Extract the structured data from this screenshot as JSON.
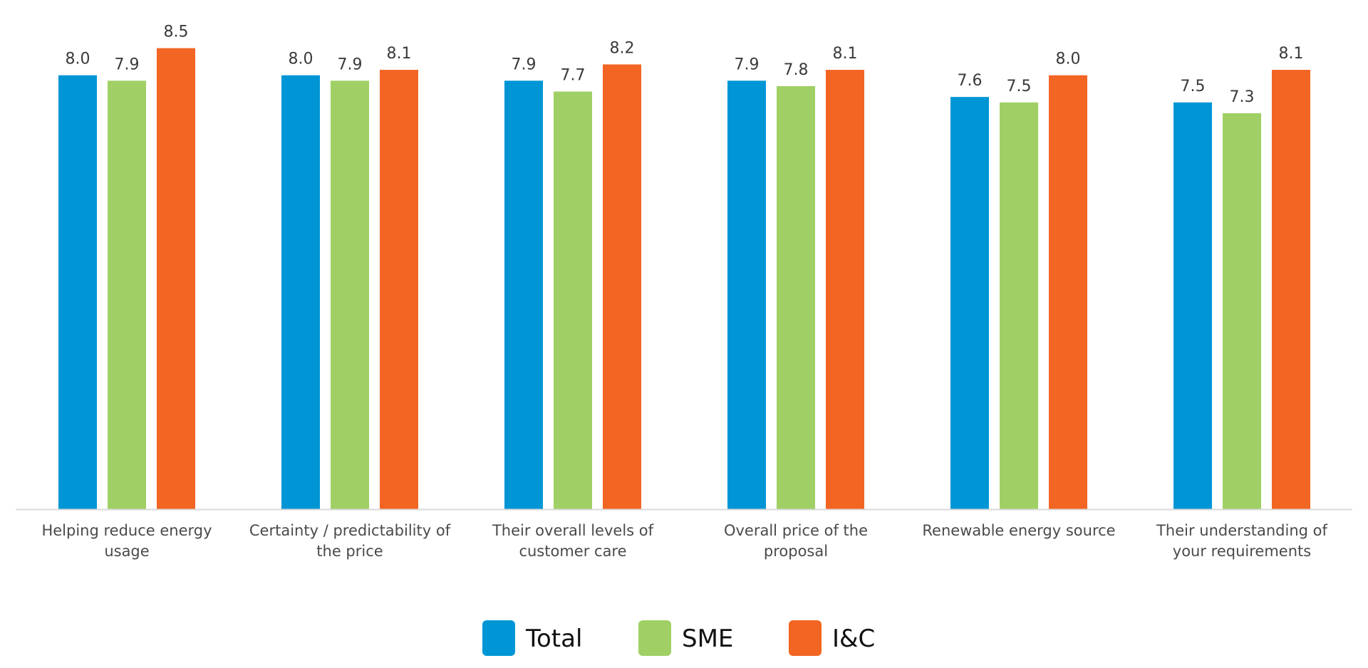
{
  "chart_data": {
    "type": "bar",
    "categories": [
      [
        "Helping reduce energy",
        "usage"
      ],
      [
        "Certainty / predictability of",
        "the price"
      ],
      [
        "Their overall levels of",
        "customer care"
      ],
      [
        "Overall price of the",
        "proposal"
      ],
      [
        "Renewable energy source"
      ],
      [
        "Their understanding of",
        "your requirements"
      ]
    ],
    "series": [
      {
        "name": "Total",
        "color": "#0096d6",
        "values": [
          8.0,
          8.0,
          7.9,
          7.9,
          7.6,
          7.5
        ],
        "labels": [
          "8.0",
          "8.0",
          "7.9",
          "7.9",
          "7.6",
          "7.5"
        ]
      },
      {
        "name": "SME",
        "color": "#a0d065",
        "values": [
          7.9,
          7.9,
          7.7,
          7.8,
          7.5,
          7.3
        ],
        "labels": [
          "7.9",
          "7.9",
          "7.7",
          "7.8",
          "7.5",
          "7.3"
        ]
      },
      {
        "name": "I&C",
        "color": "#f26522",
        "values": [
          8.5,
          8.1,
          8.2,
          8.1,
          8.0,
          8.1
        ],
        "labels": [
          "8.5",
          "8.1",
          "8.2",
          "8.1",
          "8.0",
          "8.1"
        ]
      }
    ],
    "title": "",
    "xlabel": "",
    "ylabel": "",
    "ylim": [
      0,
      8.6
    ],
    "grid": false,
    "legend_position": "bottom-center",
    "axis_line_color": "#d9d9d9"
  }
}
